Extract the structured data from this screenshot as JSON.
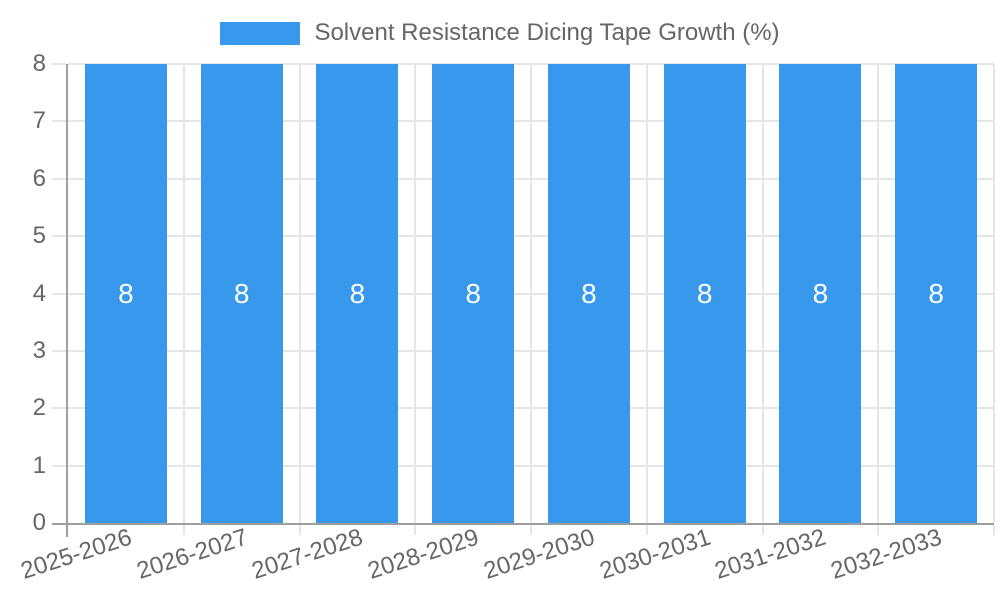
{
  "chart_data": {
    "type": "bar",
    "title": "",
    "legend": {
      "position": "top"
    },
    "categories": [
      "2025-2026",
      "2026-2027",
      "2027-2028",
      "2028-2029",
      "2029-2030",
      "2030-2031",
      "2031-2032",
      "2032-2033"
    ],
    "series": [
      {
        "name": "Solvent Resistance Dicing Tape Growth (%)",
        "values": [
          8,
          8,
          8,
          8,
          8,
          8,
          8,
          8
        ]
      }
    ],
    "bar_labels": [
      "8",
      "8",
      "8",
      "8",
      "8",
      "8",
      "8",
      "8"
    ],
    "xlabel": "",
    "ylabel": "",
    "ylim": [
      0,
      8
    ],
    "yticks": [
      "0",
      "1",
      "2",
      "3",
      "4",
      "5",
      "6",
      "7",
      "8"
    ],
    "grid": true,
    "colors": {
      "bar": "#3798EC",
      "bar_label": "#FFFFFF",
      "axis_line": "#9E9E9E",
      "gridline": "#E5E5E5",
      "tick_text": "#666666",
      "legend_text": "#666666"
    }
  }
}
